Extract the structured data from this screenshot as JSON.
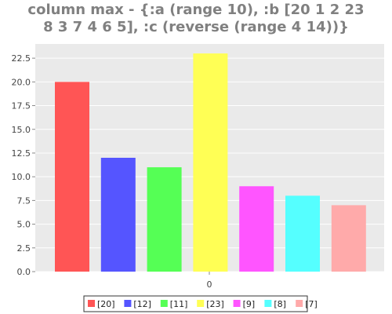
{
  "chart_data": {
    "type": "bar",
    "title_lines": [
      "column max - {:a (range 10), :b [20 1 2 23",
      "8 3 7 4 6 5], :c (reverse (range 4 14))}"
    ],
    "xlabel": "",
    "ylabel": "",
    "categories": [
      "0"
    ],
    "ylim": [
      0,
      24
    ],
    "yticks": [
      "0.0",
      "2.5",
      "5.0",
      "7.5",
      "10.0",
      "12.5",
      "15.0",
      "17.5",
      "20.0",
      "22.5"
    ],
    "grid": true,
    "legend_position": "bottom",
    "series": [
      {
        "name": "[20]",
        "values": [
          20
        ],
        "color": "#ff5555"
      },
      {
        "name": "[12]",
        "values": [
          12
        ],
        "color": "#5555ff"
      },
      {
        "name": "[11]",
        "values": [
          11
        ],
        "color": "#55ff55"
      },
      {
        "name": "[23]",
        "values": [
          23
        ],
        "color": "#ffff55"
      },
      {
        "name": "[9]",
        "values": [
          9
        ],
        "color": "#ff55ff"
      },
      {
        "name": "[8]",
        "values": [
          8
        ],
        "color": "#55ffff"
      },
      {
        "name": "[7]",
        "values": [
          7
        ],
        "color": "#ffaaaa"
      }
    ],
    "plot_background": "#eaeaea",
    "grid_color": "#ffffff"
  }
}
